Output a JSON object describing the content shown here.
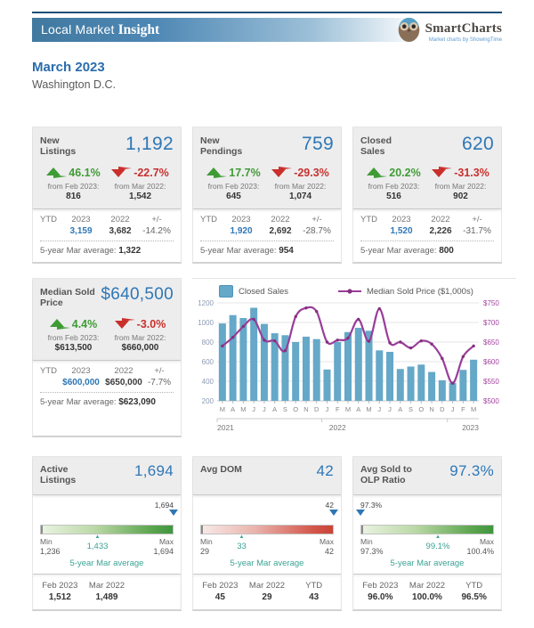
{
  "header": {
    "bar_title_regular": "Local Market ",
    "bar_title_bold": "Insight",
    "brand_name": "SmartCharts",
    "brand_tagline": "Market charts by ShowingTime",
    "period": "March 2023",
    "location": "Washington D.C."
  },
  "colors": {
    "accent_blue": "#2e77b5",
    "navy_rule": "#1d4e79",
    "up_green": "#3f9c35",
    "down_red": "#c9302c",
    "teal_average": "#3aa394",
    "bar_blue": "#65a8c8",
    "line_purple": "#993d99"
  },
  "stat_cards": [
    {
      "title": "New Listings",
      "value": "1,192",
      "changes": [
        {
          "direction": "up",
          "pct": "46.1%",
          "from_label": "from Feb 2023:",
          "from_value": "816"
        },
        {
          "direction": "down",
          "pct": "-22.7%",
          "from_label": "from Mar 2022:",
          "from_value": "1,542"
        }
      ],
      "ytd": {
        "row_label": "YTD",
        "cols": [
          "2023",
          "2022",
          "+/-"
        ],
        "values": [
          "3,159",
          "3,682",
          "-14.2%"
        ]
      },
      "average_label": "5-year Mar average:",
      "average_value": "1,322"
    },
    {
      "title": "New Pendings",
      "value": "759",
      "changes": [
        {
          "direction": "up",
          "pct": "17.7%",
          "from_label": "from Feb 2023:",
          "from_value": "645"
        },
        {
          "direction": "down",
          "pct": "-29.3%",
          "from_label": "from Mar 2022:",
          "from_value": "1,074"
        }
      ],
      "ytd": {
        "row_label": "YTD",
        "cols": [
          "2023",
          "2022",
          "+/-"
        ],
        "values": [
          "1,920",
          "2,692",
          "-28.7%"
        ]
      },
      "average_label": "5-year Mar average:",
      "average_value": "954"
    },
    {
      "title": "Closed Sales",
      "value": "620",
      "changes": [
        {
          "direction": "up",
          "pct": "20.2%",
          "from_label": "from Feb 2023:",
          "from_value": "516"
        },
        {
          "direction": "down",
          "pct": "-31.3%",
          "from_label": "from Mar 2022:",
          "from_value": "902"
        }
      ],
      "ytd": {
        "row_label": "YTD",
        "cols": [
          "2023",
          "2022",
          "+/-"
        ],
        "values": [
          "1,520",
          "2,226",
          "-31.7%"
        ]
      },
      "average_label": "5-year Mar average:",
      "average_value": "800"
    },
    {
      "title": "Median Sold Price",
      "value": "$640,500",
      "changes": [
        {
          "direction": "up",
          "pct": "4.4%",
          "from_label": "from Feb 2023:",
          "from_value": "$613,500"
        },
        {
          "direction": "down",
          "pct": "-3.0%",
          "from_label": "from Mar 2022:",
          "from_value": "$660,000"
        }
      ],
      "ytd": {
        "row_label": "YTD",
        "cols": [
          "2023",
          "2022",
          "+/-"
        ],
        "values": [
          "$600,000",
          "$650,000",
          "-7.7%"
        ]
      },
      "average_label": "5-year Mar average:",
      "average_value": "$623,090"
    }
  ],
  "chart_data": {
    "type": "bar",
    "x": [
      "M",
      "A",
      "M",
      "J",
      "J",
      "A",
      "S",
      "O",
      "N",
      "D",
      "J",
      "F",
      "M",
      "A",
      "M",
      "J",
      "J",
      "A",
      "S",
      "O",
      "N",
      "D",
      "J",
      "F",
      "M"
    ],
    "years": [
      {
        "label": "2021",
        "start_index": 0
      },
      {
        "label": "2022",
        "start_index": 10
      },
      {
        "label": "2023",
        "start_index": 22
      }
    ],
    "series": [
      {
        "name": "Closed Sales",
        "type": "bar",
        "axis": "left",
        "color": "#65a8c8",
        "values": [
          990,
          1075,
          1045,
          1150,
          985,
          890,
          870,
          800,
          855,
          830,
          520,
          800,
          902,
          945,
          915,
          715,
          700,
          525,
          550,
          570,
          495,
          410,
          384,
          516,
          620
        ]
      },
      {
        "name": "Median Sold Price ($1,000s)",
        "type": "line",
        "axis": "right",
        "color": "#993d99",
        "values": [
          640,
          662,
          690,
          708,
          655,
          653,
          628,
          715,
          737,
          728,
          650,
          655,
          660,
          708,
          652,
          735,
          648,
          650,
          635,
          653,
          645,
          608,
          545,
          613,
          640
        ]
      }
    ],
    "left_axis": {
      "min": 200,
      "max": 1200,
      "step": 200,
      "label_color": "#8d9bb5"
    },
    "right_axis": {
      "min": 500,
      "max": 750,
      "step": 50,
      "prefix": "$",
      "label_color": "#a343a0"
    },
    "grid": true,
    "legend_position": "top"
  },
  "gauge_cards": [
    {
      "title": "Active Listings",
      "value": "1,694",
      "pointer_label": "1,694",
      "pointer_pos_pct": 100,
      "bar_type": "green",
      "min_label": "Min",
      "min_value": "1,236",
      "max_label": "Max",
      "max_value": "1,694",
      "avg_value": "1,433",
      "avg_pos_pct": 43,
      "avg_caption": "5-year Mar average",
      "footer": [
        {
          "label": "Feb 2023",
          "value": "1,512"
        },
        {
          "label": "Mar 2022",
          "value": "1,489"
        }
      ]
    },
    {
      "title": "Avg DOM",
      "value": "42",
      "pointer_label": "42",
      "pointer_pos_pct": 100,
      "bar_type": "red",
      "min_label": "Min",
      "min_value": "29",
      "max_label": "Max",
      "max_value": "42",
      "avg_value": "33",
      "avg_pos_pct": 31,
      "avg_caption": "5-year Mar average",
      "footer": [
        {
          "label": "Feb 2023",
          "value": "45"
        },
        {
          "label": "Mar 2022",
          "value": "29"
        },
        {
          "label": "YTD",
          "value": "43"
        }
      ]
    },
    {
      "title": "Avg Sold to OLP Ratio",
      "value": "97.3%",
      "pointer_label": "97.3%",
      "pointer_pos_pct": 0,
      "bar_type": "green",
      "min_label": "Min",
      "min_value": "97.3%",
      "max_label": "Max",
      "max_value": "100.4%",
      "avg_value": "99.1%",
      "avg_pos_pct": 58,
      "avg_caption": "5-year Mar average",
      "footer": [
        {
          "label": "Feb 2023",
          "value": "96.0%"
        },
        {
          "label": "Mar 2022",
          "value": "100.0%"
        },
        {
          "label": "YTD",
          "value": "96.5%"
        }
      ]
    }
  ]
}
